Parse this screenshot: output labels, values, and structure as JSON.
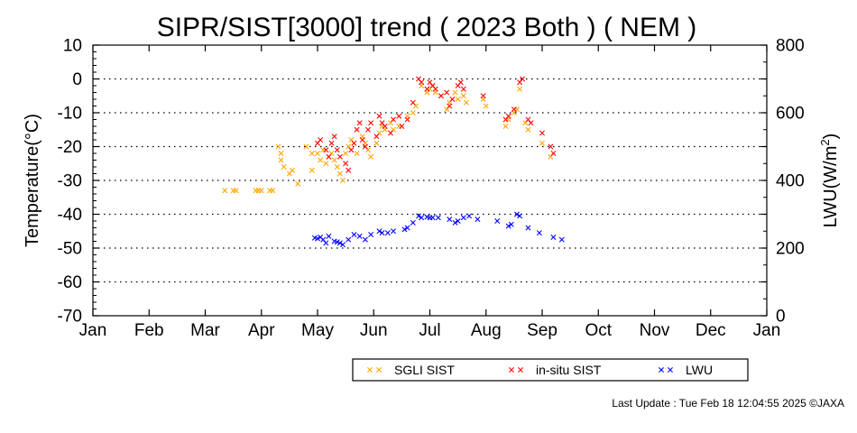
{
  "chart_data": {
    "type": "scatter",
    "title": "SIPR/SIST[3000] trend ( 2023 Both ) ( NEM )",
    "ylabel": "Temperature(°C)",
    "y2label_main": "LWU(W/m",
    "y2label_sup": "2",
    "y2label_end": ")",
    "ylim": [
      -70,
      10
    ],
    "y2lim": [
      0,
      800
    ],
    "xlim": [
      0,
      12
    ],
    "yticks": [
      10,
      0,
      -10,
      -20,
      -30,
      -40,
      -50,
      -60,
      -70
    ],
    "y2ticks": [
      800,
      600,
      400,
      200,
      0
    ],
    "x_tick_labels": [
      "Jan",
      "Feb",
      "Mar",
      "Apr",
      "May",
      "Jun",
      "Jul",
      "Aug",
      "Sep",
      "Oct",
      "Nov",
      "Dec",
      "Jan"
    ],
    "grid": true,
    "legend_position": "bottom-right",
    "series": [
      {
        "name": "SGLI SIST",
        "color": "#ffa500",
        "axis": "left",
        "points": [
          [
            2.35,
            -33
          ],
          [
            2.5,
            -33
          ],
          [
            2.55,
            -33
          ],
          [
            2.9,
            -33
          ],
          [
            2.95,
            -33
          ],
          [
            3.0,
            -33
          ],
          [
            3.15,
            -33
          ],
          [
            3.2,
            -33
          ],
          [
            3.3,
            -20
          ],
          [
            3.35,
            -22
          ],
          [
            3.35,
            -24
          ],
          [
            3.4,
            -26
          ],
          [
            3.5,
            -28
          ],
          [
            3.55,
            -27
          ],
          [
            3.65,
            -31
          ],
          [
            3.8,
            -20
          ],
          [
            3.9,
            -22
          ],
          [
            3.9,
            -27
          ],
          [
            4.0,
            -22
          ],
          [
            4.05,
            -24
          ],
          [
            4.1,
            -21
          ],
          [
            4.15,
            -25
          ],
          [
            4.2,
            -23
          ],
          [
            4.25,
            -22
          ],
          [
            4.3,
            -24
          ],
          [
            4.35,
            -26
          ],
          [
            4.4,
            -28
          ],
          [
            4.45,
            -30
          ],
          [
            4.5,
            -22
          ],
          [
            4.55,
            -20
          ],
          [
            4.6,
            -18
          ],
          [
            4.7,
            -22
          ],
          [
            4.8,
            -17
          ],
          [
            4.85,
            -19
          ],
          [
            4.9,
            -21
          ],
          [
            4.95,
            -23
          ],
          [
            5.05,
            -19
          ],
          [
            5.1,
            -16
          ],
          [
            5.15,
            -14
          ],
          [
            5.2,
            -15
          ],
          [
            5.3,
            -13
          ],
          [
            5.35,
            -15
          ],
          [
            5.45,
            -14
          ],
          [
            5.6,
            -11
          ],
          [
            5.7,
            -10
          ],
          [
            5.75,
            -8
          ],
          [
            5.85,
            -2
          ],
          [
            5.95,
            -4
          ],
          [
            6.0,
            -3
          ],
          [
            6.05,
            -2
          ],
          [
            6.1,
            -4
          ],
          [
            6.2,
            -5
          ],
          [
            6.3,
            -9
          ],
          [
            6.35,
            -7
          ],
          [
            6.45,
            -4
          ],
          [
            6.5,
            -6
          ],
          [
            6.6,
            -5
          ],
          [
            6.65,
            -7
          ],
          [
            6.95,
            -6
          ],
          [
            7.0,
            -8
          ],
          [
            7.35,
            -14
          ],
          [
            7.4,
            -12
          ],
          [
            7.5,
            -10
          ],
          [
            7.55,
            -9
          ],
          [
            7.6,
            -3
          ],
          [
            7.7,
            -13
          ],
          [
            7.75,
            -15
          ],
          [
            8.0,
            -19
          ],
          [
            8.15,
            -23
          ]
        ]
      },
      {
        "name": "in-situ SIST",
        "color": "#ff0000",
        "axis": "left",
        "points": [
          [
            4.0,
            -19
          ],
          [
            4.05,
            -18
          ],
          [
            4.15,
            -21
          ],
          [
            4.2,
            -23
          ],
          [
            4.25,
            -19
          ],
          [
            4.3,
            -17
          ],
          [
            4.35,
            -21
          ],
          [
            4.4,
            -23
          ],
          [
            4.5,
            -25
          ],
          [
            4.55,
            -27
          ],
          [
            4.6,
            -21
          ],
          [
            4.65,
            -19
          ],
          [
            4.7,
            -15
          ],
          [
            4.75,
            -13
          ],
          [
            4.8,
            -18
          ],
          [
            4.85,
            -20
          ],
          [
            4.9,
            -15
          ],
          [
            4.95,
            -13
          ],
          [
            5.05,
            -17
          ],
          [
            5.1,
            -11
          ],
          [
            5.15,
            -13
          ],
          [
            5.2,
            -14
          ],
          [
            5.3,
            -16
          ],
          [
            5.35,
            -12
          ],
          [
            5.45,
            -11
          ],
          [
            5.5,
            -14
          ],
          [
            5.6,
            -12
          ],
          [
            5.7,
            -7
          ],
          [
            5.8,
            0
          ],
          [
            5.85,
            -1
          ],
          [
            5.95,
            -3
          ],
          [
            6.0,
            -1
          ],
          [
            6.05,
            -2
          ],
          [
            6.1,
            -3
          ],
          [
            6.2,
            -5
          ],
          [
            6.3,
            -4
          ],
          [
            6.35,
            -8
          ],
          [
            6.4,
            -6
          ],
          [
            6.5,
            -2
          ],
          [
            6.55,
            -1
          ],
          [
            6.6,
            -3
          ],
          [
            6.95,
            -5
          ],
          [
            7.35,
            -12
          ],
          [
            7.4,
            -11
          ],
          [
            7.5,
            -9
          ],
          [
            7.6,
            -1
          ],
          [
            7.65,
            0
          ],
          [
            7.75,
            -12
          ],
          [
            7.8,
            -13
          ],
          [
            8.0,
            -16
          ],
          [
            8.15,
            -20
          ],
          [
            8.2,
            -22
          ]
        ]
      },
      {
        "name": "LWU",
        "color": "#0000ff",
        "axis": "right",
        "points": [
          [
            3.95,
            230
          ],
          [
            4.0,
            228
          ],
          [
            4.05,
            232
          ],
          [
            4.1,
            225
          ],
          [
            4.15,
            215
          ],
          [
            4.2,
            235
          ],
          [
            4.3,
            220
          ],
          [
            4.35,
            218
          ],
          [
            4.4,
            215
          ],
          [
            4.45,
            210
          ],
          [
            4.55,
            225
          ],
          [
            4.65,
            240
          ],
          [
            4.75,
            235
          ],
          [
            4.85,
            225
          ],
          [
            4.95,
            240
          ],
          [
            5.1,
            250
          ],
          [
            5.15,
            245
          ],
          [
            5.25,
            245
          ],
          [
            5.35,
            250
          ],
          [
            5.55,
            255
          ],
          [
            5.6,
            260
          ],
          [
            5.7,
            275
          ],
          [
            5.8,
            295
          ],
          [
            5.85,
            290
          ],
          [
            5.95,
            292
          ],
          [
            6.0,
            290
          ],
          [
            6.05,
            290
          ],
          [
            6.15,
            290
          ],
          [
            6.35,
            285
          ],
          [
            6.45,
            275
          ],
          [
            6.5,
            280
          ],
          [
            6.6,
            290
          ],
          [
            6.7,
            295
          ],
          [
            6.85,
            285
          ],
          [
            7.2,
            280
          ],
          [
            7.4,
            265
          ],
          [
            7.45,
            270
          ],
          [
            7.55,
            300
          ],
          [
            7.6,
            295
          ],
          [
            7.75,
            260
          ],
          [
            7.95,
            245
          ],
          [
            8.2,
            232
          ],
          [
            8.35,
            225
          ]
        ]
      }
    ],
    "footer": "Last Update : Tue Feb 18 12:04:55 2025  ©JAXA"
  }
}
